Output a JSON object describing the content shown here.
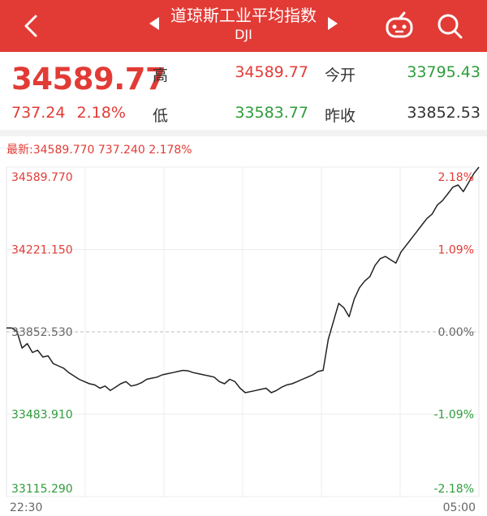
{
  "header": {
    "title": "道琼斯工业平均指数",
    "code": "DJI",
    "background": "#e23b36",
    "icons": [
      "back-arrow-icon",
      "prev-triangle-icon",
      "next-triangle-icon",
      "robot-icon",
      "search-icon"
    ]
  },
  "quote": {
    "price": "34589.77",
    "change": "737.24",
    "change_pct": "2.18%",
    "high_label": "高",
    "high": "34589.77",
    "low_label": "低",
    "low": "33583.77",
    "open_label": "今开",
    "open": "33795.43",
    "prev_close_label": "昨收",
    "prev_close": "33852.53"
  },
  "chart_data": {
    "type": "line",
    "latest_label": "最新:34589.770 737.240 2.178%",
    "y_ticks": [
      "34589.770",
      "34221.150",
      "33852.530",
      "33483.910",
      "33115.290"
    ],
    "pct_ticks": [
      "2.18%",
      "1.09%",
      "0.00%",
      "-1.09%",
      "-2.18%"
    ],
    "x_ticks": [
      "22:30",
      "05:00"
    ],
    "ylim": [
      33115.29,
      34589.77
    ],
    "baseline": 33852.53,
    "colors": {
      "up": "#e23b36",
      "down": "#2e9c3b",
      "neutral": "#666666",
      "line": "#222222"
    },
    "series": [
      {
        "values": [
          33870,
          33870,
          33855,
          33780,
          33800,
          33760,
          33770,
          33740,
          33745,
          33710,
          33700,
          33690,
          33670,
          33655,
          33640,
          33630,
          33620,
          33615,
          33600,
          33610,
          33590,
          33605,
          33620,
          33630,
          33610,
          33615,
          33625,
          33640,
          33645,
          33650,
          33660,
          33665,
          33670,
          33675,
          33680,
          33678,
          33670,
          33665,
          33660,
          33655,
          33650,
          33630,
          33620,
          33640,
          33630,
          33600,
          33580,
          33585,
          33590,
          33595,
          33600,
          33580,
          33590,
          33605,
          33615,
          33620,
          33630,
          33640,
          33650,
          33660,
          33675,
          33680,
          33820,
          33900,
          33980,
          33960,
          33920,
          34000,
          34050,
          34080,
          34100,
          34150,
          34180,
          34190,
          34175,
          34160,
          34210,
          34240,
          34270,
          34300,
          34330,
          34360,
          34380,
          34420,
          34440,
          34470,
          34500,
          34510,
          34480,
          34520,
          34560,
          34589.77
        ]
      }
    ]
  }
}
